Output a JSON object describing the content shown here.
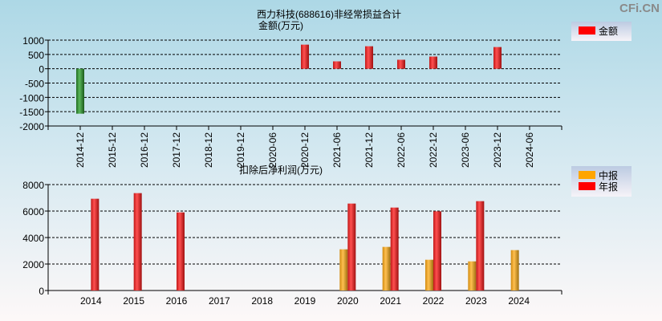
{
  "watermark": "CFi.CN",
  "chart_data": [
    {
      "type": "bar",
      "title": "西力科技(688616)非经常损益合计",
      "ylabel": "金额(万元)",
      "legend": [
        {
          "name": "金额",
          "color": "#ff0000"
        }
      ],
      "legend_position": "top-right",
      "grid": true,
      "ylim": [
        -2000,
        1000
      ],
      "yticks": [
        1000,
        500,
        0,
        -500,
        -1000,
        -1500,
        -2000
      ],
      "categories": [
        "2014-12",
        "2015-12",
        "2016-12",
        "2017-12",
        "2018-12",
        "2019-12",
        "2020-06",
        "2020-12",
        "2021-06",
        "2021-12",
        "2022-06",
        "2022-12",
        "2023-06",
        "2023-12",
        "2024-06"
      ],
      "series": [
        {
          "name": "金额",
          "values": [
            -1570,
            null,
            null,
            null,
            null,
            null,
            null,
            842,
            258,
            786,
            314,
            425,
            null,
            758,
            null
          ]
        }
      ],
      "colors": {
        "positive": "#ff0000",
        "negative": "#2e8b2e"
      }
    },
    {
      "type": "bar",
      "title": "扣除后净利润(万元)",
      "legend": [
        {
          "name": "中报",
          "color": "#ffa500"
        },
        {
          "name": "年报",
          "color": "#ff0000"
        }
      ],
      "legend_position": "top-right",
      "grid": true,
      "ylim": [
        0,
        8000
      ],
      "yticks": [
        8000,
        6000,
        4000,
        2000,
        0
      ],
      "categories": [
        "2014",
        "2015",
        "2016",
        "2017",
        "2018",
        "2019",
        "2020",
        "2021",
        "2022",
        "2023",
        "2024"
      ],
      "series": [
        {
          "name": "中报",
          "values": [
            null,
            null,
            null,
            null,
            null,
            null,
            3111,
            3293,
            2323,
            2202,
            3051
          ]
        },
        {
          "name": "年报",
          "values": [
            6930,
            7354,
            5899,
            null,
            null,
            null,
            6566,
            6263,
            5980,
            6747,
            null
          ]
        }
      ]
    }
  ]
}
